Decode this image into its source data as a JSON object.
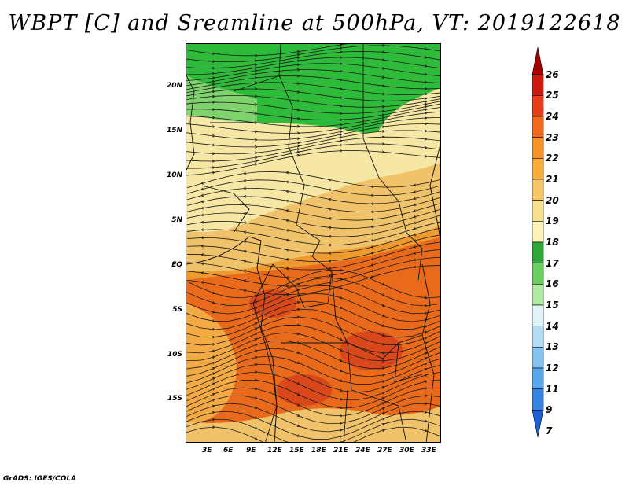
{
  "title": "WBPT [C] and Sreamline at 500hPa, VT: 2019122618",
  "credit": "GrADS: IGES/COLA",
  "map": {
    "lat_labels": [
      "20N",
      "15N",
      "10N",
      "5N",
      "EQ",
      "5S",
      "10S",
      "15S"
    ],
    "lon_labels": [
      "3E",
      "6E",
      "9E",
      "12E",
      "15E",
      "18E",
      "21E",
      "24E",
      "27E",
      "30E",
      "33E"
    ],
    "field": "wet-bulb potential temperature",
    "overlay": "streamlines",
    "colors": {
      "green_band": "#2fbb3a",
      "light_green": "#7ed36c",
      "pale_yellow": "#f6e7a4",
      "tan": "#f0c36b",
      "orange": "#ef9a2e",
      "dark_orange": "#e86a1a",
      "red_orange": "#d9481a"
    }
  },
  "colorbar": {
    "levels": [
      "26",
      "25",
      "24",
      "23",
      "22",
      "21",
      "20",
      "19",
      "18",
      "17",
      "16",
      "15",
      "14",
      "13",
      "12",
      "11",
      "9",
      "7"
    ],
    "colors": [
      "#a80000",
      "#cc1a0f",
      "#e3401a",
      "#f06a1c",
      "#f7922a",
      "#f9ae3a",
      "#f7c765",
      "#f8e08e",
      "#fcf3b8",
      "#2fa83a",
      "#67cf5d",
      "#b1eaa6",
      "#dff4f8",
      "#b3dcf6",
      "#86c3f0",
      "#5aa6ea",
      "#3684e2",
      "#1c5fd6"
    ]
  }
}
